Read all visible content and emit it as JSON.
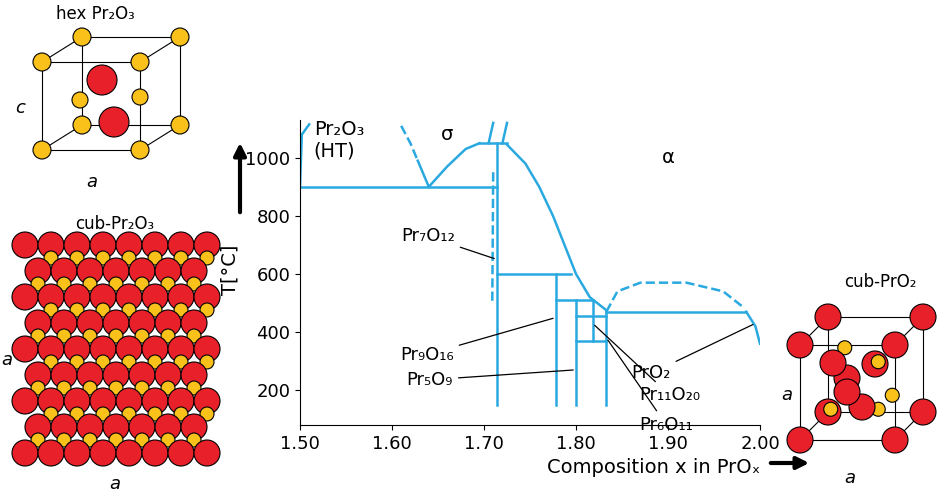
{
  "chart_data": {
    "type": "line",
    "color": "#29a9e0",
    "xlabel": "Composition x in PrOₓ",
    "ylabel": "T[°C]",
    "xlim": [
      1.5,
      2.0
    ],
    "ylim": [
      80,
      1130
    ],
    "xticks": [
      {
        "value": 1.5,
        "label": "1.50"
      },
      {
        "value": 1.6,
        "label": "1.60"
      },
      {
        "value": 1.7,
        "label": "1.70"
      },
      {
        "value": 1.8,
        "label": "1.80"
      },
      {
        "value": 1.9,
        "label": "1.90"
      },
      {
        "value": 2.0,
        "label": "2.00"
      }
    ],
    "yticks": [
      200,
      400,
      600,
      800,
      1000
    ],
    "series": [
      {
        "x": [
          1.5,
          1.714
        ],
        "values": [
          900,
          900
        ],
        "line_style": "solid"
      },
      {
        "x": [
          1.5,
          1.502,
          1.51
        ],
        "values": [
          900,
          1080,
          1115
        ],
        "line_style": "solid"
      },
      {
        "x": [
          1.61,
          1.62,
          1.628
        ],
        "values": [
          1110,
          1050,
          990
        ],
        "line_style": "dashed"
      },
      {
        "x": [
          1.628,
          1.64
        ],
        "values": [
          990,
          900
        ],
        "line_style": "solid"
      },
      {
        "x": [
          1.64,
          1.66,
          1.68,
          1.695
        ],
        "values": [
          900,
          970,
          1030,
          1050
        ],
        "line_style": "solid"
      },
      {
        "x": [
          1.695,
          1.725
        ],
        "values": [
          1050,
          1050
        ],
        "line_style": "solid"
      },
      {
        "x": [
          1.705,
          1.71
        ],
        "values": [
          1050,
          1120
        ],
        "line_style": "solid"
      },
      {
        "x": [
          1.72,
          1.725
        ],
        "values": [
          1050,
          1120
        ],
        "line_style": "solid"
      },
      {
        "x": [
          1.714,
          1.714
        ],
        "values": [
          1050,
          150
        ],
        "line_style": "solid"
      },
      {
        "x": [
          1.71,
          1.709
        ],
        "values": [
          950,
          500
        ],
        "line_style": "dashed"
      },
      {
        "x": [
          1.725,
          1.745,
          1.76,
          1.775,
          1.79,
          1.8,
          1.815,
          1.833
        ],
        "values": [
          1045,
          980,
          900,
          800,
          680,
          600,
          520,
          475
        ],
        "line_style": "solid"
      },
      {
        "x": [
          1.714,
          1.795
        ],
        "values": [
          600,
          600
        ],
        "line_style": "solid"
      },
      {
        "x": [
          1.778,
          1.778
        ],
        "values": [
          600,
          150
        ],
        "line_style": "solid"
      },
      {
        "x": [
          1.778,
          1.818
        ],
        "values": [
          510,
          510
        ],
        "line_style": "solid"
      },
      {
        "x": [
          1.8,
          1.8
        ],
        "values": [
          510,
          150
        ],
        "line_style": "solid"
      },
      {
        "x": [
          1.818,
          1.818
        ],
        "values": [
          510,
          370
        ],
        "line_style": "solid"
      },
      {
        "x": [
          1.8,
          1.833
        ],
        "values": [
          455,
          455
        ],
        "line_style": "solid"
      },
      {
        "x": [
          1.8,
          1.833
        ],
        "values": [
          370,
          370
        ],
        "line_style": "solid"
      },
      {
        "x": [
          1.833,
          1.833
        ],
        "values": [
          475,
          150
        ],
        "line_style": "solid"
      },
      {
        "x": [
          1.833,
          1.985
        ],
        "values": [
          470,
          470
        ],
        "line_style": "solid"
      },
      {
        "x": [
          1.833,
          1.845,
          1.87,
          1.92,
          1.96,
          1.98
        ],
        "values": [
          470,
          540,
          570,
          570,
          540,
          490
        ],
        "line_style": "dashed"
      },
      {
        "x": [
          1.985,
          1.995,
          2.0
        ],
        "values": [
          470,
          420,
          360
        ],
        "line_style": "solid"
      }
    ],
    "annotations": [
      {
        "text": "Pr₂O₃\n(HT)",
        "x": 1.515,
        "y": 1060
      },
      {
        "text": "σ",
        "x": 1.66,
        "y": 1080
      },
      {
        "text": "α",
        "x": 1.9,
        "y": 1000
      },
      {
        "text": "Pr₇O₁₂",
        "x": 1.714,
        "y": 650
      },
      {
        "text": "Pr₉O₁₆",
        "x": 1.778,
        "y": 450
      },
      {
        "text": "Pr₅O₉",
        "x": 1.8,
        "y": 270
      },
      {
        "text": "PrO₂",
        "x": 1.995,
        "y": 430
      },
      {
        "text": "Pr₁₁O₂₀",
        "x": 1.818,
        "y": 430
      },
      {
        "text": "Pr₆O₁₁",
        "x": 1.833,
        "y": 380
      }
    ]
  },
  "insets": [
    {
      "title": "hex Pr₂O₃",
      "labels": [
        "c",
        "a"
      ]
    },
    {
      "title": "cub-Pr₂O₃",
      "labels": [
        "a",
        "a"
      ]
    },
    {
      "title": "cub-PrO₂",
      "labels": [
        "a",
        "a"
      ]
    }
  ]
}
